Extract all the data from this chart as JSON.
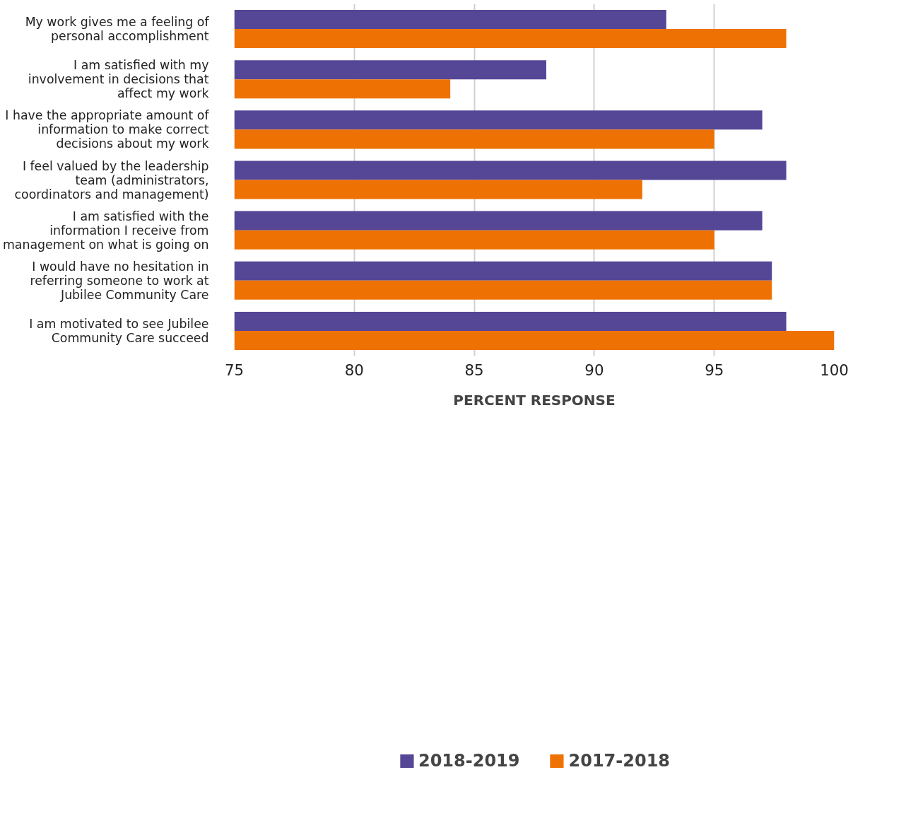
{
  "chart_data": {
    "type": "bar",
    "orientation": "horizontal",
    "xlabel": "PERCENT RESPONSE",
    "categories": [
      "My work gives me a feeling of personal accomplishment",
      "I am satisfied with my involvement in decisions that affect my work",
      "I have the appropriate amount of information to make correct decisions about my work",
      "I feel valued by the leadership team (administrators, coordinators and management)",
      "I am satisfied with the information I receive from management on what is going on",
      "I would have no hesitation in referring someone to work at Jubilee Community Care",
      "I am motivated to see Jubilee Community Care succeed"
    ],
    "series": [
      {
        "name": "2018-2019",
        "color": "#554696",
        "values": [
          93,
          88,
          97,
          98,
          97,
          97.4,
          98
        ]
      },
      {
        "name": "2017-2018",
        "color": "#ee7203",
        "values": [
          98,
          84,
          95,
          92,
          95,
          97.4,
          100
        ]
      }
    ],
    "xlim": [
      75,
      100
    ],
    "xticks": [
      75,
      80,
      85,
      90,
      95,
      100
    ],
    "grid": "x",
    "legend": "bottom"
  }
}
